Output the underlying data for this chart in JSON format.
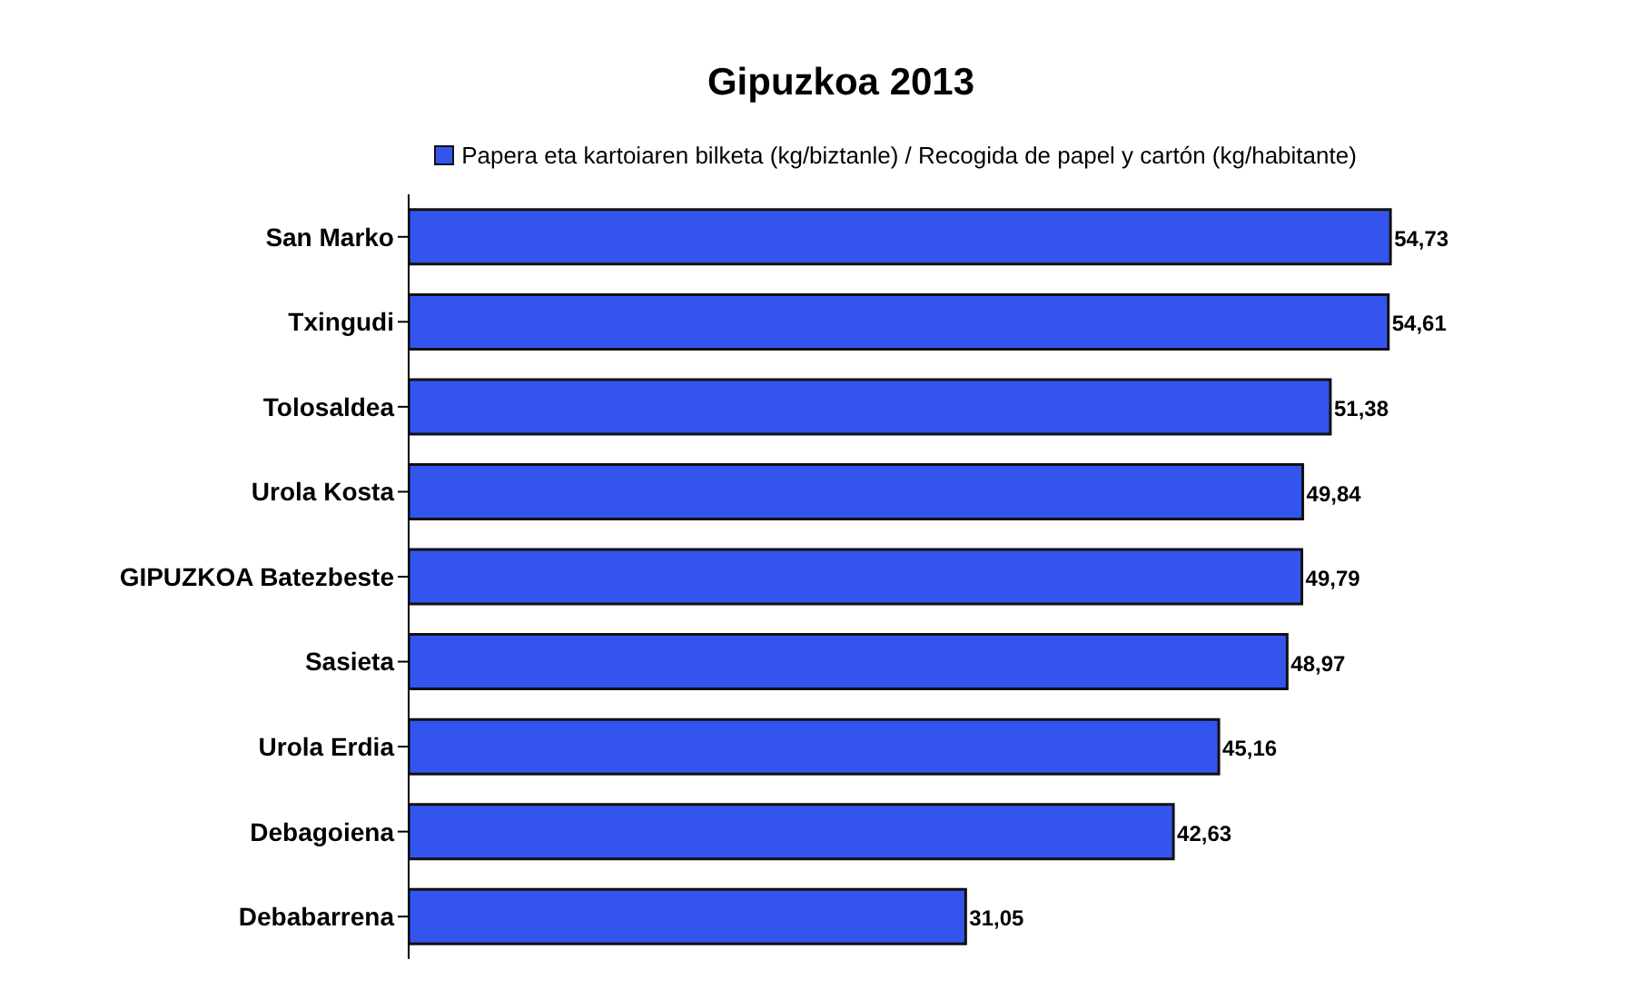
{
  "chart_data": {
    "type": "bar",
    "orientation": "horizontal",
    "title": "Gipuzkoa 2013",
    "categories": [
      "San Marko",
      "Txingudi",
      "Tolosaldea",
      "Urola Kosta",
      "GIPUZKOA Batezbeste",
      "Sasieta",
      "Urola Erdia",
      "Debagoiena",
      "Debabarrena"
    ],
    "series": [
      {
        "name": "Papera eta kartoiaren bilketa (kg/biztanle) / Recogida de papel y cartón (kg/habitante)",
        "color": "#3355ee",
        "values": [
          54.73,
          54.61,
          51.38,
          49.84,
          49.79,
          48.97,
          45.16,
          42.63,
          31.05
        ],
        "value_labels": [
          "54,73",
          "54,61",
          "51,38",
          "49,84",
          "49,79",
          "48,97",
          "45,16",
          "42,63",
          "31,05"
        ]
      }
    ],
    "legend": "top",
    "grid": false
  }
}
